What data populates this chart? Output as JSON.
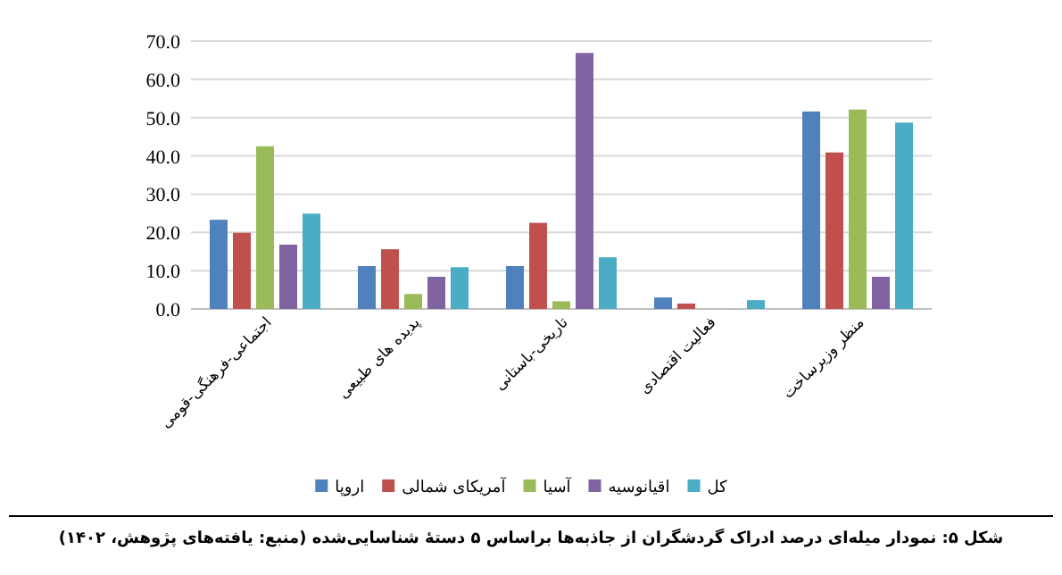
{
  "chart_data": {
    "type": "bar",
    "categories": [
      "اجتماعی-فرهنگی-قومی",
      "پدیده های طبیعی",
      "تاریخی-باستانی",
      "فعالیت اقتصادی",
      "منظر وزیرساخت"
    ],
    "series": [
      {
        "name": "اروپا",
        "color": "#4f81bd",
        "values": [
          23.3,
          11.2,
          11.2,
          3.0,
          51.6
        ]
      },
      {
        "name": "آمریکای شمالی",
        "color": "#c0504d",
        "values": [
          19.9,
          15.6,
          22.5,
          1.4,
          40.9
        ]
      },
      {
        "name": "آسیا",
        "color": "#9bbb59",
        "values": [
          42.5,
          3.9,
          2.0,
          0,
          52.1
        ]
      },
      {
        "name": "اقیانوسیه",
        "color": "#8064a2",
        "values": [
          16.8,
          8.4,
          66.9,
          0,
          8.4
        ]
      },
      {
        "name": "کل",
        "color": "#4bacc6",
        "values": [
          24.9,
          10.9,
          13.5,
          2.3,
          48.7
        ]
      }
    ],
    "ylim": [
      0,
      70
    ],
    "yticks": [
      {
        "value": 0,
        "label": "0.0"
      },
      {
        "value": 10,
        "label": "10.0"
      },
      {
        "value": 20,
        "label": "20.0"
      },
      {
        "value": 30,
        "label": "30.0"
      },
      {
        "value": 40,
        "label": "40.0"
      },
      {
        "value": 50,
        "label": "50.0"
      },
      {
        "value": 60,
        "label": "60.0"
      },
      {
        "value": 70,
        "label": "70.0"
      }
    ],
    "grid": "y",
    "legend": "bottom",
    "annotations": [
      "شکل ۵: نمودار میله‌ای درصد ادراک گردشگران از جاذبه‌ها براساس ۵ دستهٔ شناسایی‌شده (منبع: یافته‌های پژوهش، ۱۴۰۲)"
    ]
  }
}
